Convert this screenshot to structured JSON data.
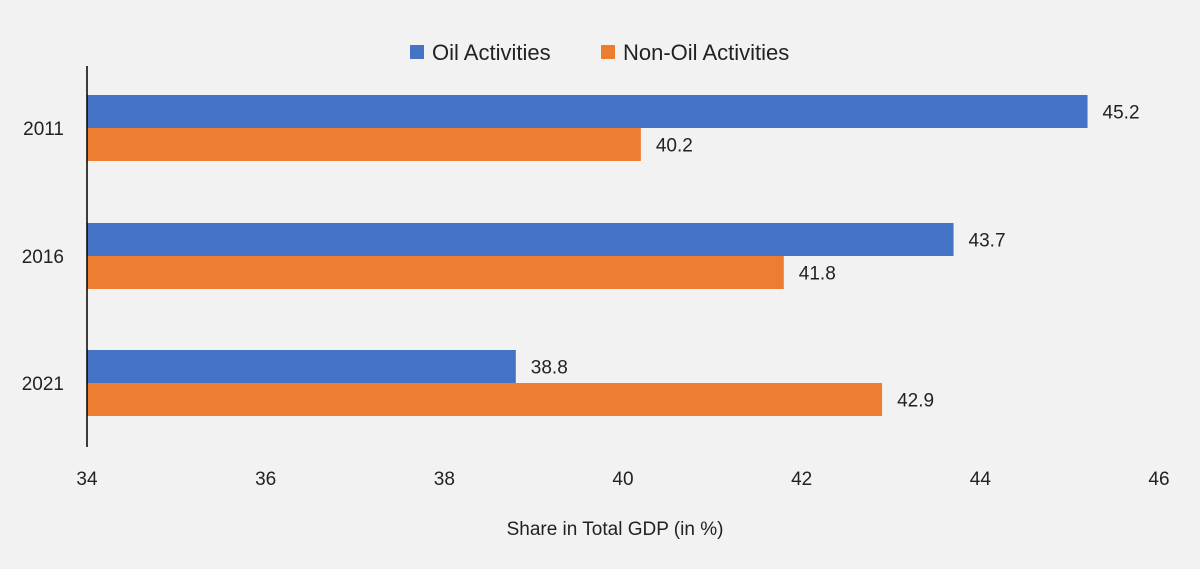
{
  "chart_data": {
    "type": "bar",
    "orientation": "horizontal",
    "categories": [
      "2011",
      "2016",
      "2021"
    ],
    "series": [
      {
        "name": "Oil Activities",
        "values": [
          45.2,
          43.7,
          38.8
        ],
        "color": "#4472c4"
      },
      {
        "name": "Non-Oil Activities",
        "values": [
          40.2,
          41.8,
          42.9
        ],
        "color": "#ed7d31"
      }
    ],
    "title": "",
    "xlabel": "Share in Total GDP (in %)",
    "ylabel": "",
    "xlim": [
      34,
      46
    ],
    "xticks": [
      "34",
      "36",
      "38",
      "40",
      "42",
      "44",
      "46"
    ],
    "data_labels": [
      [
        "45.2",
        "43.7",
        "38.8"
      ],
      [
        "40.2",
        "41.8",
        "42.9"
      ]
    ],
    "grid": false,
    "legend": {
      "position": "top"
    }
  }
}
